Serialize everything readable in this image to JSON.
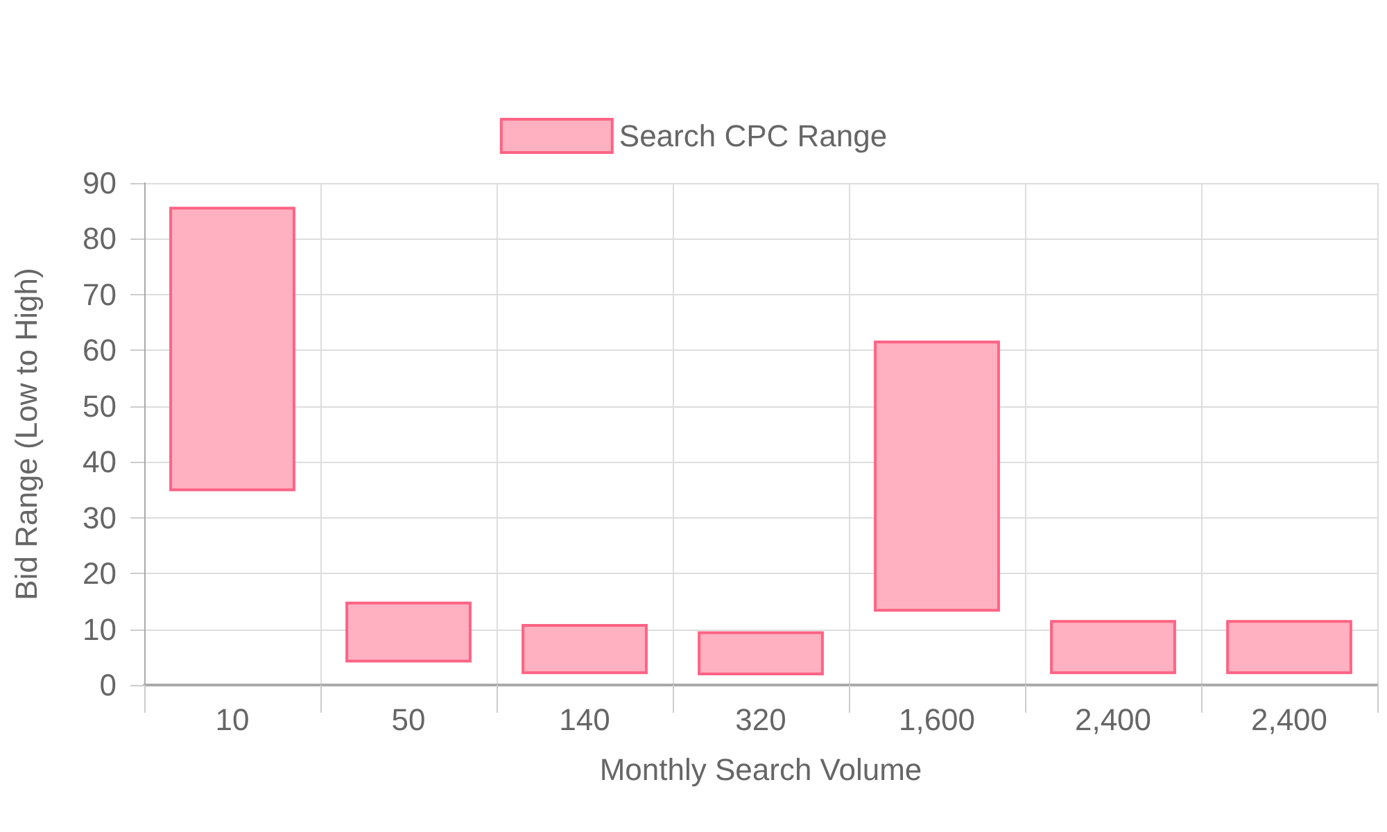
{
  "chart_data": {
    "type": "bar",
    "xlabel": "Monthly Search Volume",
    "ylabel": "Bid Range (Low to High)",
    "categories": [
      "10",
      "50",
      "140",
      "320",
      "1,600",
      "2,400",
      "2,400"
    ],
    "series": [
      {
        "name": "Search CPC Range",
        "color": "#ffb1c1",
        "values": [
          50.5,
          10.4,
          8.5,
          7.4,
          48.1,
          9.2,
          9.2
        ],
        "base": [
          35,
          4.3,
          2.2,
          2,
          13.4,
          2.2,
          2.2
        ]
      }
    ],
    "ylim": [
      0,
      90
    ],
    "yticks": [
      0,
      10,
      20,
      30,
      40,
      50,
      60,
      70,
      80,
      90
    ],
    "grid": true,
    "legend": "top"
  }
}
